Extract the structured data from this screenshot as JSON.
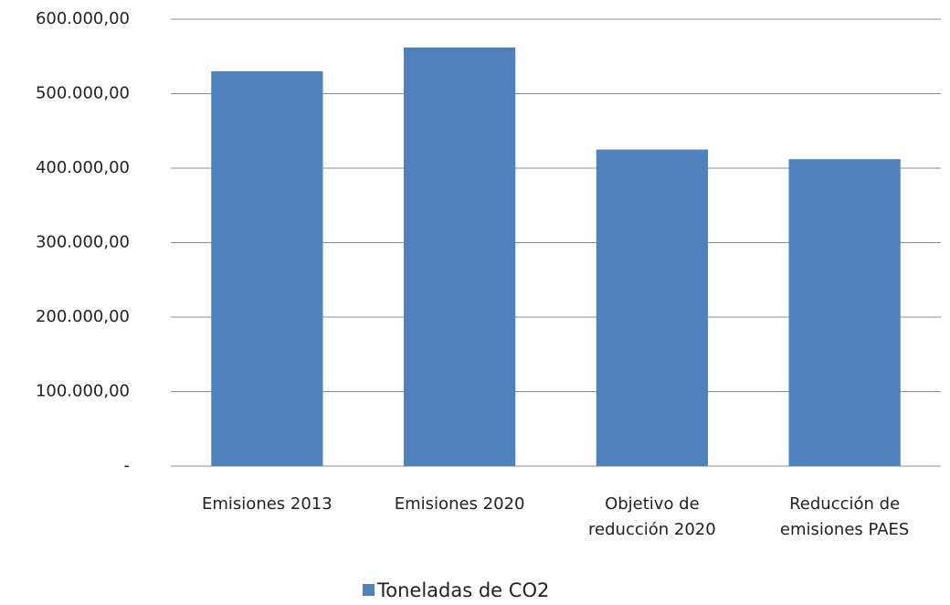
{
  "chart_data": {
    "type": "bar",
    "categories": [
      "Emisiones 2013",
      "Emisiones 2020",
      "Objetivo de reducción 2020",
      "Reducción de emisiones PAES"
    ],
    "series": [
      {
        "name": "Toneladas de CO2",
        "color": "#4f81bd",
        "values": [
          530000,
          562000,
          425000,
          412000
        ]
      }
    ],
    "ylim": [
      0,
      600000
    ],
    "yticks": [
      {
        "value": 0,
        "label": "-"
      },
      {
        "value": 100000,
        "label": "100.000,00"
      },
      {
        "value": 200000,
        "label": "200.000,00"
      },
      {
        "value": 300000,
        "label": "300.000,00"
      },
      {
        "value": 400000,
        "label": "400.000,00"
      },
      {
        "value": 500000,
        "label": "500.000,00"
      },
      {
        "value": 600000,
        "label": "600.000,00"
      }
    ],
    "grid": true,
    "legend": "bottom"
  }
}
